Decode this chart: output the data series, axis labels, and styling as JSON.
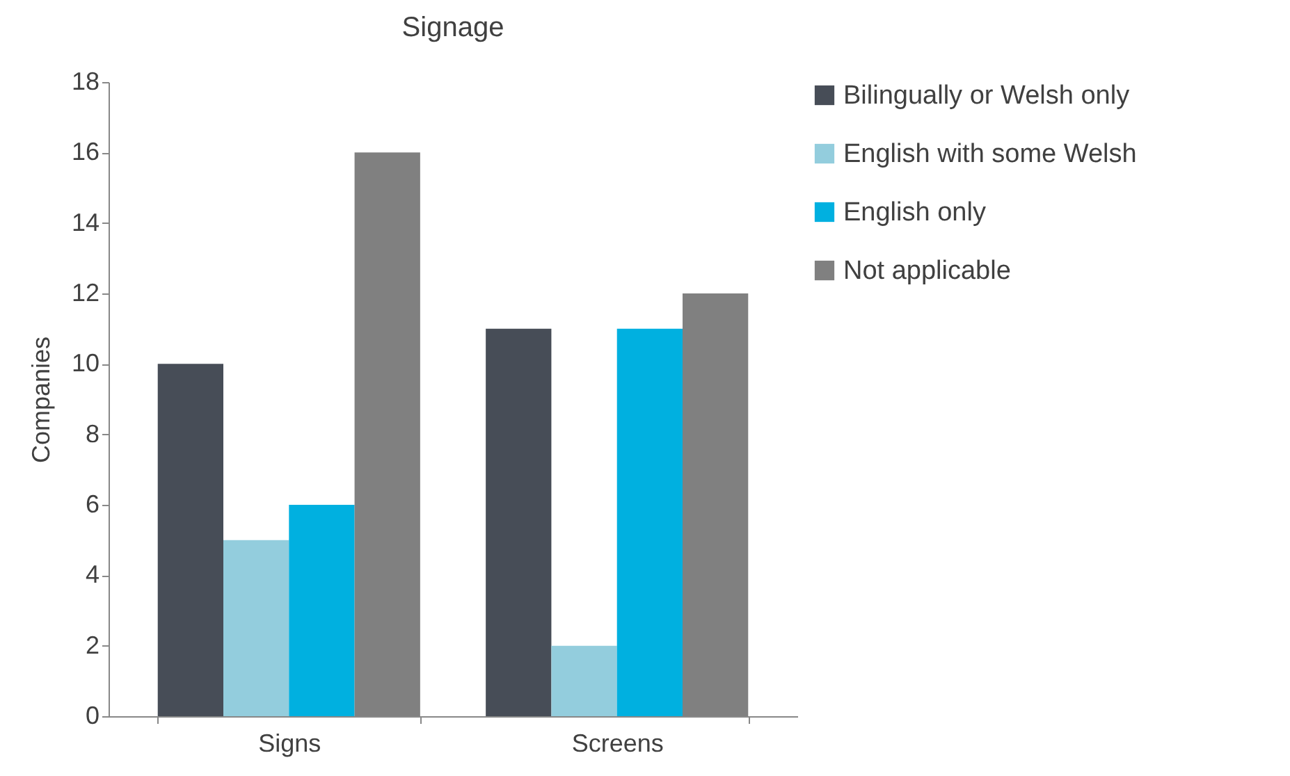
{
  "chart_data": {
    "type": "bar",
    "title": "Signage",
    "ylabel": "Companies",
    "categories": [
      "Signs",
      "Screens"
    ],
    "series": [
      {
        "name": "Bilingually or Welsh only",
        "color": "#474d57",
        "values": [
          10,
          11
        ]
      },
      {
        "name": "English with some Welsh",
        "color": "#93cddd",
        "values": [
          5,
          2
        ]
      },
      {
        "name": "English only",
        "color": "#00b0e0",
        "values": [
          6,
          11
        ]
      },
      {
        "name": "Not applicable",
        "color": "#808080",
        "values": [
          16,
          12
        ]
      }
    ],
    "ylim": [
      0,
      18
    ],
    "yticks": [
      0,
      2,
      4,
      6,
      8,
      10,
      12,
      14,
      16,
      18
    ],
    "grid": false,
    "legend": "right"
  }
}
